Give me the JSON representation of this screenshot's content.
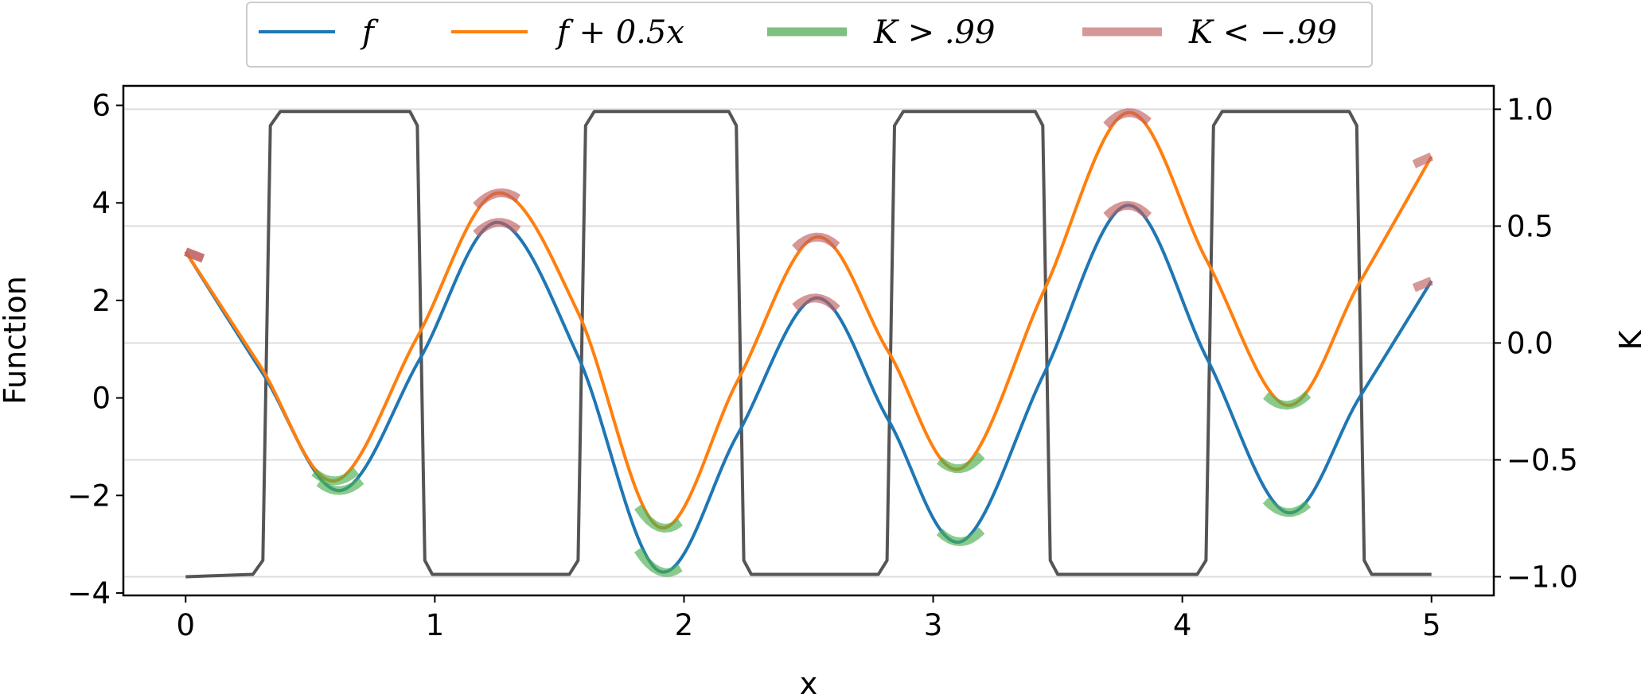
{
  "chart_data": {
    "type": "line",
    "xlabel": "x",
    "ylabel": "Function",
    "y2label": "K",
    "xlim": [
      -0.25,
      5.25
    ],
    "ylim": [
      -4.05,
      6.4
    ],
    "y2lim": [
      -1.08,
      1.1
    ],
    "xticks": [
      "0",
      "1",
      "2",
      "3",
      "4",
      "5"
    ],
    "yticks": [
      "−4",
      "−2",
      "0",
      "2",
      "4",
      "6"
    ],
    "y2ticks": [
      "−1.0",
      "−0.5",
      "0.0",
      "0.5",
      "1.0"
    ],
    "grid": "horizontal",
    "legend_position": "top-center",
    "legend": [
      {
        "label": "f",
        "color": "#1f77b4"
      },
      {
        "label": "f + 0.5x",
        "color": "#ff7f0e"
      },
      {
        "label": "K > .99",
        "color": "#7fbf7f"
      },
      {
        "label": "K < −.99",
        "color": "#d59898"
      }
    ],
    "series": [
      {
        "name": "f",
        "color": "#1f77b4",
        "x": [
          0,
          0.31,
          0.62,
          0.94,
          1.25,
          1.575,
          1.9,
          2.215,
          2.53,
          2.82,
          3.11,
          3.445,
          3.78,
          4.1,
          4.42,
          4.71,
          5.0
        ],
        "y": [
          3.0,
          0.5,
          -1.9,
          0.8,
          3.6,
          0.85,
          -3.55,
          -0.75,
          2.05,
          -0.45,
          -2.95,
          0.5,
          3.95,
          0.8,
          -2.35,
          0.0,
          2.4
        ]
      },
      {
        "name": "f + 0.5x",
        "color": "#ff7f0e",
        "x": [
          0,
          0.3,
          0.6,
          0.93,
          1.25,
          1.575,
          1.9,
          2.215,
          2.53,
          2.82,
          3.11,
          3.445,
          3.78,
          4.1,
          4.42,
          4.71,
          5.0
        ],
        "y": [
          3.0,
          0.65,
          -1.7,
          1.25,
          4.2,
          1.75,
          -2.65,
          0.35,
          3.3,
          0.95,
          -1.45,
          2.2,
          5.85,
          2.8,
          -0.15,
          2.35,
          4.95
        ]
      },
      {
        "name": "K",
        "color": "#555555",
        "axis": "right",
        "x": [
          0,
          0.27,
          0.31,
          0.325,
          0.34,
          0.38,
          0.9,
          0.93,
          0.945,
          0.96,
          0.99,
          1.54,
          1.575,
          1.59,
          1.605,
          1.64,
          2.18,
          2.21,
          2.225,
          2.24,
          2.27,
          2.78,
          2.815,
          2.83,
          2.845,
          2.88,
          3.41,
          3.44,
          3.455,
          3.47,
          3.5,
          4.06,
          4.095,
          4.11,
          4.125,
          4.16,
          4.67,
          4.7,
          4.715,
          4.73,
          4.76,
          5.0
        ],
        "y": [
          -1.0,
          -0.99,
          -0.93,
          0.0,
          0.93,
          0.99,
          0.99,
          0.93,
          0.0,
          -0.93,
          -0.99,
          -0.99,
          -0.93,
          0.0,
          0.93,
          0.99,
          0.99,
          0.93,
          0.0,
          -0.93,
          -0.99,
          -0.99,
          -0.93,
          0.0,
          0.93,
          0.99,
          0.99,
          0.93,
          0.0,
          -0.93,
          -0.99,
          -0.99,
          -0.93,
          0.0,
          0.93,
          0.99,
          0.99,
          0.93,
          0.0,
          -0.93,
          -0.99,
          -0.99
        ]
      }
    ]
  }
}
